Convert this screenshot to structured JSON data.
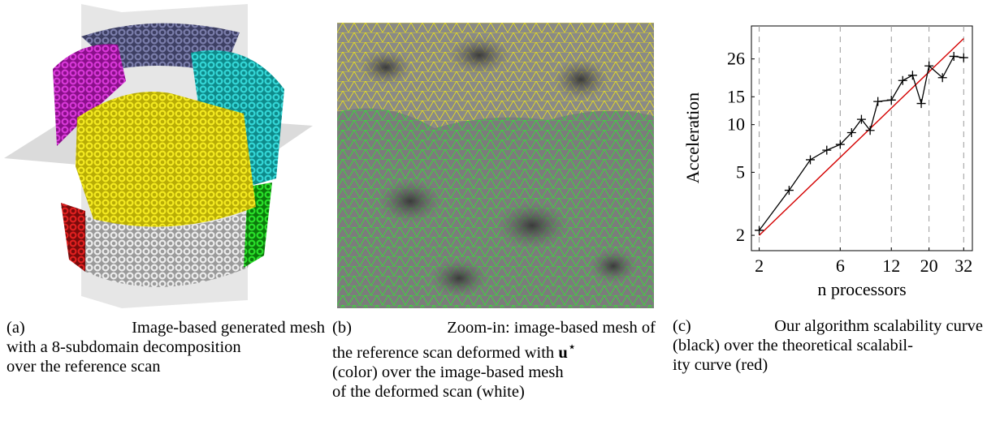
{
  "captions": {
    "a": {
      "label": "(a)",
      "lines": [
        "Image-based generated mesh",
        "with a 8-subdomain decomposition",
        "over the reference scan"
      ]
    },
    "b": {
      "label": "(b)",
      "line1": "Zoom-in: image-based mesh of",
      "line2_pre": "the reference scan deformed with",
      "symbol": "u",
      "sup": "⋆",
      "line3": "(color) over the image-based mesh",
      "line4": "of the deformed scan (white)"
    },
    "c": {
      "label": "(c)",
      "lines": [
        "Our algorithm scalability curve",
        "(black) over the theoretical scalabil-",
        "ity curve (red)"
      ]
    }
  },
  "colors": {
    "measured": "#000000",
    "theoretical": "#d40000",
    "gridline": "#9a9a9a",
    "mesh_yellow": "#e8dc10",
    "mesh_green": "#22dd22",
    "mesh_magenta": "#c21ec2",
    "mesh_cyan": "#1ac2c2",
    "mesh_slate": "#5c5f8c",
    "mesh_red": "#cc1a1a",
    "mesh_white": "#d8d8d8",
    "plane_gray": "#bdbdbd"
  },
  "chart_data": {
    "type": "line",
    "xlabel": "n processors",
    "ylabel": "Acceleration",
    "x_scale": "log",
    "y_scale": "log",
    "xlim": [
      1.8,
      36
    ],
    "ylim": [
      1.6,
      42
    ],
    "x_ticks": [
      2,
      6,
      12,
      20,
      32
    ],
    "y_ticks": [
      2,
      5,
      10,
      15,
      26
    ],
    "x_gridlines": [
      2,
      6,
      12,
      20,
      32
    ],
    "grid": "vertical dashed",
    "series": [
      {
        "color": "black",
        "marker": "+",
        "x": [
          2,
          3,
          4,
          5,
          6,
          7,
          8,
          9,
          10,
          12,
          14,
          16,
          18,
          20,
          24,
          28,
          32
        ],
        "y": [
          2.15,
          3.85,
          6.0,
          6.9,
          7.5,
          8.9,
          10.8,
          9.2,
          14.0,
          14.3,
          19.0,
          20.5,
          13.6,
          23.5,
          19.8,
          27.0,
          26.5
        ]
      },
      {
        "color": "red",
        "x": [
          2,
          32
        ],
        "y": [
          2.0,
          35.0
        ]
      }
    ]
  }
}
